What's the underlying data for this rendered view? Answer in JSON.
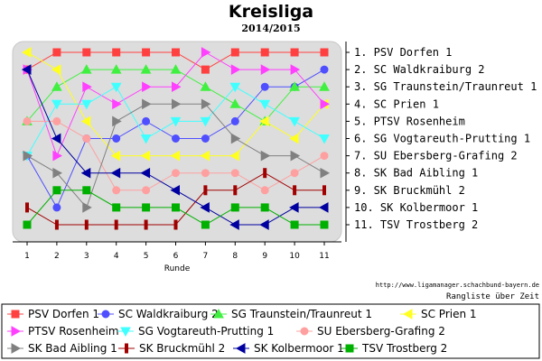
{
  "chart_data": {
    "type": "line",
    "title": "Kreisliga",
    "subtitle": "2014/2015",
    "xlabel": "Runde",
    "ylabel": "",
    "x": [
      1,
      2,
      3,
      4,
      5,
      6,
      7,
      8,
      9,
      10,
      11
    ],
    "ylim": [
      1,
      11
    ],
    "y_inverted": true,
    "grid": false,
    "legend_position": "bottom",
    "source_text": "http://www.ligamanager.schachbund-bayern.de",
    "note_text": "Rangliste über Zeit",
    "rank_labels": [
      "1. PSV Dorfen 1",
      "2. SC Waldkraiburg 2",
      "3. SG Traunstein/Traunreut 1",
      "4. SC Prien 1",
      "5. PTSV Rosenheim",
      "6. SG Vogtareuth-Prutting 1",
      "7. SU Ebersberg-Grafing 2",
      "8. SK Bad Aibling 1",
      "9. SK Bruckmühl 2",
      "10. SK Kolbermoor 1",
      "11. TSV Trostberg 2"
    ],
    "series": [
      {
        "name": "PSV Dorfen 1",
        "color": "#ff4040",
        "marker": "square",
        "values": [
          2,
          1,
          1,
          1,
          1,
          1,
          2,
          1,
          1,
          1,
          1
        ]
      },
      {
        "name": "SC Waldkraiburg 2",
        "color": "#4f4fff",
        "marker": "circle",
        "values": [
          7,
          10,
          6,
          6,
          5,
          6,
          6,
          5,
          3,
          3,
          2
        ]
      },
      {
        "name": "SG Traunstein/Traunreut 1",
        "color": "#40f040",
        "marker": "triangle-up",
        "values": [
          5,
          3,
          2,
          2,
          2,
          2,
          3,
          4,
          5,
          3,
          3
        ]
      },
      {
        "name": "SC Prien 1",
        "color": "#ffff20",
        "marker": "triangle-left",
        "values": [
          1,
          2,
          5,
          7,
          7,
          7,
          7,
          7,
          5,
          6,
          4
        ]
      },
      {
        "name": "PTSV Rosenheim",
        "color": "#ff40ff",
        "marker": "triangle-right",
        "values": [
          2,
          7,
          3,
          4,
          3,
          3,
          1,
          2,
          2,
          2,
          4
        ]
      },
      {
        "name": "SG Vogtareuth-Prutting 1",
        "color": "#40ffff",
        "marker": "triangle-down",
        "values": [
          7,
          4,
          4,
          3,
          6,
          5,
          5,
          3,
          4,
          5,
          6
        ]
      },
      {
        "name": "SU Ebersberg-Grafing 2",
        "color": "#ffa0a0",
        "marker": "circle",
        "values": [
          5,
          5,
          6,
          9,
          9,
          8,
          8,
          8,
          9,
          8,
          7
        ]
      },
      {
        "name": "SK Bad Aibling 1",
        "color": "#808080",
        "marker": "triangle-right",
        "values": [
          7,
          8,
          10,
          5,
          4,
          4,
          4,
          6,
          7,
          7,
          8
        ]
      },
      {
        "name": "SK Bruckmühl 2",
        "color": "#a00000",
        "marker": "vbar",
        "values": [
          10,
          11,
          11,
          11,
          11,
          11,
          9,
          9,
          8,
          9,
          9
        ]
      },
      {
        "name": "SK Kolbermoor 1",
        "color": "#0000a0",
        "marker": "triangle-left",
        "values": [
          2,
          6,
          8,
          8,
          8,
          9,
          10,
          11,
          11,
          10,
          10
        ]
      },
      {
        "name": "TSV Trostberg 2",
        "color": "#00b000",
        "marker": "square",
        "values": [
          11,
          9,
          9,
          10,
          10,
          10,
          11,
          10,
          10,
          11,
          11
        ]
      }
    ]
  }
}
